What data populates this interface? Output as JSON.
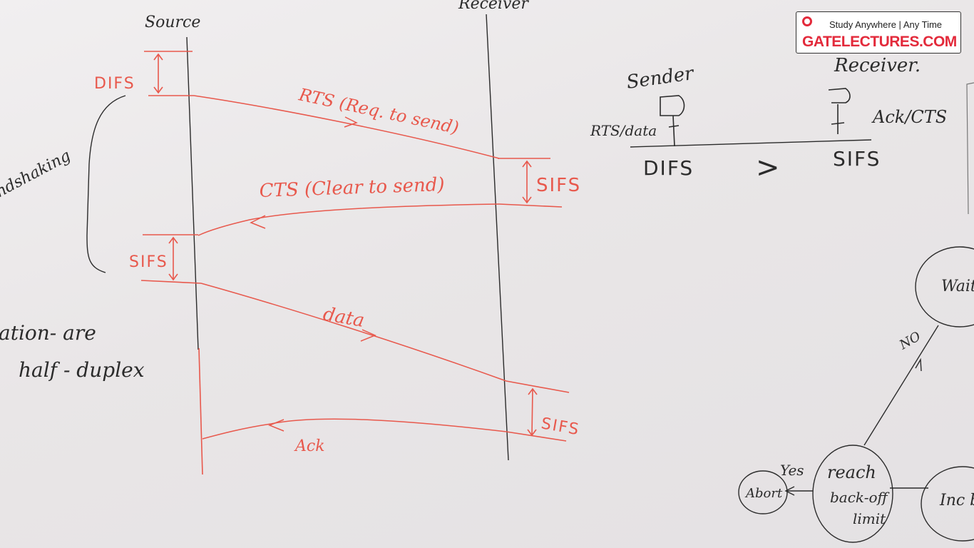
{
  "logo": {
    "tagline": "Study Anywhere | Any Time",
    "brand": "GATELECTURES.COM"
  },
  "timing_diagram": {
    "source_label": "Source",
    "receiver_label": "Receiver",
    "difs_label": "DIFS",
    "rts_label": "RTS (Req. to send)",
    "sifs1_label": "SIFS",
    "cts_label": "CTS (Clear to send)",
    "sifs2_label": "SIFS",
    "data_label": "data",
    "sifs3_label": "SIFS",
    "ack_label": "Ack",
    "handshaking_label": "Handshaking"
  },
  "side_note": {
    "line1": "ation- are",
    "line2": "half - duplex"
  },
  "comparison": {
    "sender_label": "Sender",
    "receiver_label": "Receiver.",
    "sender_action": "RTS/data",
    "receiver_action": "Ack/CTS",
    "left_interval": "DIFS",
    "operator": ">",
    "right_interval": "SIFS"
  },
  "flowchart": {
    "wait_node": "Wait bac",
    "no_label": "NO",
    "yes_label": "Yes",
    "reach_node_line1": "reach",
    "reach_node_line2": "back-off",
    "reach_node_line3": "limit",
    "abort_node": "Abort",
    "increase_node": "Inc ba"
  },
  "colors": {
    "marker_red": "#e8584c",
    "marker_black": "#2b2b2b"
  }
}
